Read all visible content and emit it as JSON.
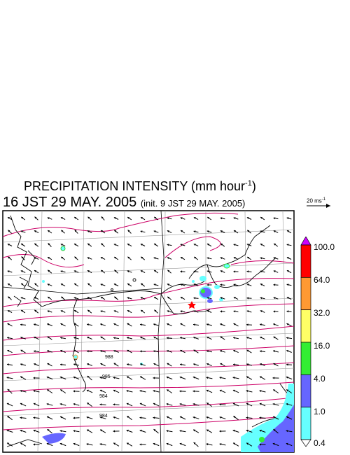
{
  "header": {
    "title_text": "PRECIPITATION INTENSITY (mm hour",
    "title_exp": "-1",
    "title_end": ")",
    "valid_time": "16 JST 29 MAY. 2005",
    "init_time": "(init. 9 JST 29 MAY. 2005)"
  },
  "wind_reference": {
    "value_text": "20 ms",
    "exp": "-1"
  },
  "colorbar": {
    "labels": [
      "100.0",
      "64.0",
      "32.0",
      "16.0",
      "4.0",
      "1.0",
      "0.4"
    ],
    "colors": [
      "#ff0000",
      "#ff9933",
      "#ffff66",
      "#33ee33",
      "#6666ff",
      "#66ffff"
    ],
    "top_color": "#cc00ff"
  },
  "contours": {
    "labels": [
      "988",
      "985",
      "984",
      "984"
    ],
    "color": "#cc0066"
  },
  "colors": {
    "coast": "#000000",
    "grid": "#999999",
    "arrow": "#000000",
    "marker": "#ff0000"
  }
}
